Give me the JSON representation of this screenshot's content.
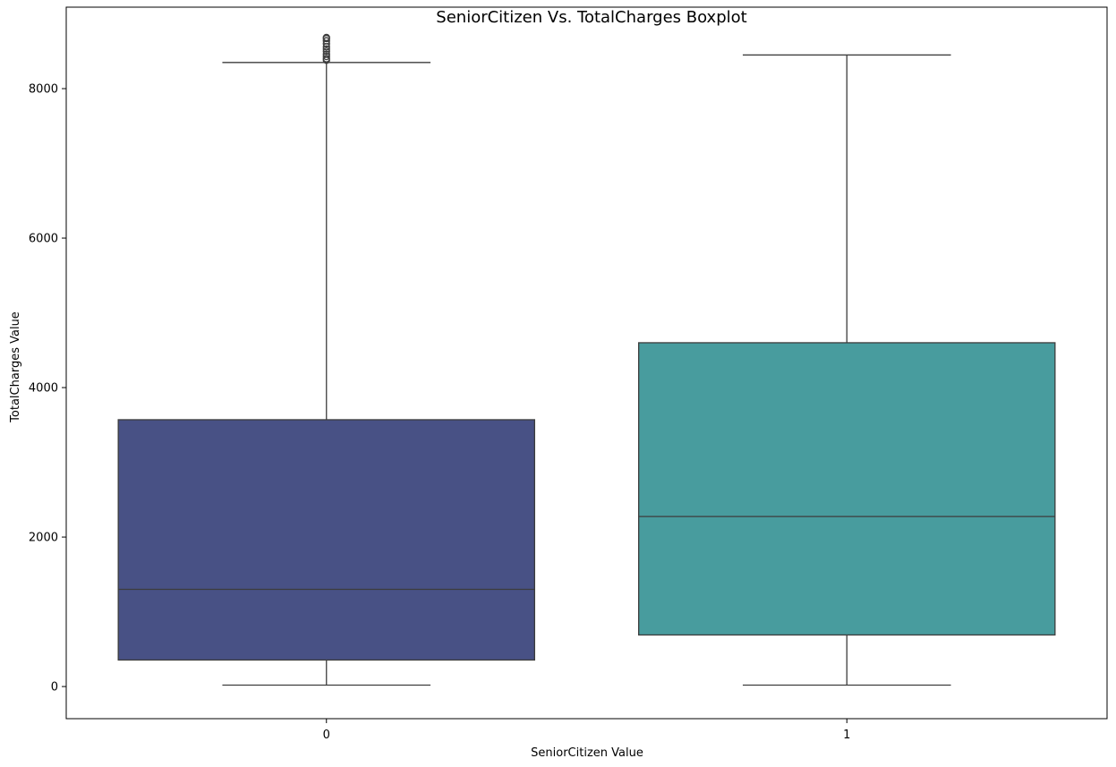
{
  "chart_data": {
    "type": "boxplot",
    "title": "SeniorCitizen Vs. TotalCharges Boxplot",
    "xlabel": "SeniorCitizen Value",
    "ylabel": "TotalCharges Value",
    "categories": [
      "0",
      "1"
    ],
    "ylim": [
      -430,
      9090
    ],
    "yticks": [
      0,
      2000,
      4000,
      6000,
      8000
    ],
    "yticklabels": [
      "0",
      "2000",
      "4000",
      "6000",
      "8000"
    ],
    "boxes": [
      {
        "category": "0",
        "whisker_low": 18.8,
        "q1": 355,
        "median": 1300,
        "q3": 3570,
        "whisker_high": 8350,
        "color": "#485185",
        "outliers": [
          8380,
          8400,
          8430,
          8460,
          8500,
          8530,
          8560,
          8600,
          8640,
          8670,
          8684
        ]
      },
      {
        "category": "1",
        "whisker_low": 18.8,
        "q1": 690,
        "median": 2275,
        "q3": 4600,
        "whisker_high": 8450,
        "color": "#489c9e",
        "outliers": []
      }
    ]
  }
}
